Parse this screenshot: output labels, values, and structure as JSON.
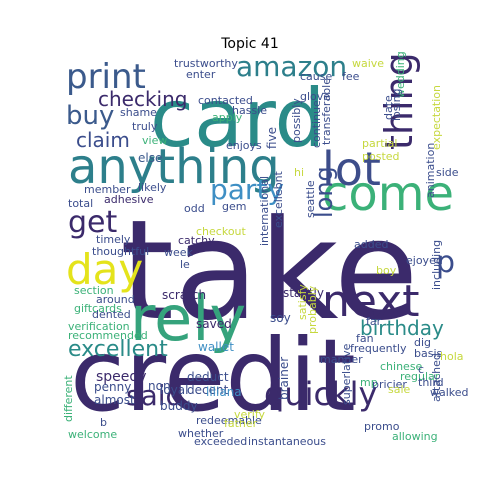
{
  "title": "Topic 41",
  "words": [
    {
      "text": "take",
      "color": "#3b2a6b"
    },
    {
      "text": "credit",
      "color": "#3b2a6b"
    },
    {
      "text": "card",
      "color": "#2a8b88"
    },
    {
      "text": "anything",
      "color": "#2d7f8b"
    },
    {
      "text": "rely",
      "color": "#35a37c"
    },
    {
      "text": "come",
      "color": "#3bb178"
    },
    {
      "text": "lot",
      "color": "#3d4d8a"
    },
    {
      "text": "next",
      "color": "#3b2a6b"
    },
    {
      "text": "day",
      "color": "#e4e31b"
    },
    {
      "text": "print",
      "color": "#3b5a8c"
    },
    {
      "text": "amazon",
      "color": "#2d7f8b"
    },
    {
      "text": "thing",
      "color": "#3b2a6b"
    },
    {
      "text": "quickly",
      "color": "#3b2a6b"
    },
    {
      "text": "said",
      "color": "#3b2a6b"
    },
    {
      "text": "get",
      "color": "#3b2a6b"
    },
    {
      "text": "party",
      "color": "#3f8fc4"
    },
    {
      "text": "buy",
      "color": "#3b5a8c"
    },
    {
      "text": "excellent",
      "color": "#2a8b88"
    },
    {
      "text": "birthday",
      "color": "#2a8b88"
    },
    {
      "text": "checking",
      "color": "#3b2a6b"
    },
    {
      "text": "claim",
      "color": "#3b4d8c"
    },
    {
      "text": "long",
      "color": "#3b4d8c"
    },
    {
      "text": "p",
      "color": "#3b4d8c"
    },
    {
      "text": "else",
      "color": "#3b5a8c"
    },
    {
      "text": "scratch",
      "color": "#3b2a6b"
    },
    {
      "text": "instantly",
      "color": "#3b2a6b"
    },
    {
      "text": "saved",
      "color": "#3b2a6b"
    },
    {
      "text": "soy",
      "color": "#3b4d8c"
    },
    {
      "text": "wallet",
      "color": "#3f8fc4"
    },
    {
      "text": "deduct",
      "color": "#3b4d8c"
    },
    {
      "text": "decent",
      "color": "#3b4d8c"
    },
    {
      "text": "loyal",
      "color": "#3b4d8c"
    },
    {
      "text": "buddy",
      "color": "#3b4d8c"
    },
    {
      "text": "speedy",
      "color": "#3b2a6b"
    },
    {
      "text": "penny",
      "color": "#3b4d8c"
    },
    {
      "text": "almost",
      "color": "#3b4d8c"
    },
    {
      "text": "non",
      "color": "#3b4d8c"
    },
    {
      "text": "liliana",
      "color": "#3f8fc4"
    },
    {
      "text": "brainer",
      "color": "#3b4d8c"
    },
    {
      "text": "five",
      "color": "#3b4d8c"
    },
    {
      "text": "possibly",
      "color": "#3b4d8c"
    },
    {
      "text": "continue",
      "color": "#3b4d8c"
    },
    {
      "text": "transferable",
      "color": "#3b4d8c"
    },
    {
      "text": "glove",
      "color": "#3b4d8c"
    },
    {
      "text": "contacted",
      "color": "#3b4d8c"
    },
    {
      "text": "hassle",
      "color": "#3b4d8c"
    },
    {
      "text": "enter",
      "color": "#3b4d8c"
    },
    {
      "text": "cause",
      "color": "#3b4d8c"
    },
    {
      "text": "trustworthy",
      "color": "#3b4d8c"
    },
    {
      "text": "waive",
      "color": "#c6d83e"
    },
    {
      "text": "fee",
      "color": "#3b4d8c"
    },
    {
      "text": "wedding",
      "color": "#3bb178"
    },
    {
      "text": "losing",
      "color": "#3b4d8c"
    },
    {
      "text": "date",
      "color": "#3b4d8c"
    },
    {
      "text": "expectation",
      "color": "#c6d83e"
    },
    {
      "text": "partial",
      "color": "#c6d83e"
    },
    {
      "text": "posted",
      "color": "#c6d83e"
    },
    {
      "text": "apply",
      "color": "#3bb178"
    },
    {
      "text": "enjoys",
      "color": "#3b4d8c"
    },
    {
      "text": "truly",
      "color": "#3b4d8c"
    },
    {
      "text": "shame",
      "color": "#3b4d8c"
    },
    {
      "text": "view",
      "color": "#3bb178"
    },
    {
      "text": "member",
      "color": "#3b4d8c"
    },
    {
      "text": "likely",
      "color": "#3b4d8c"
    },
    {
      "text": "adhesive",
      "color": "#3b2a6b"
    },
    {
      "text": "total",
      "color": "#3b4d8c"
    },
    {
      "text": "odd",
      "color": "#3b4d8c"
    },
    {
      "text": "gem",
      "color": "#3b4d8c"
    },
    {
      "text": "checkout",
      "color": "#c6d83e"
    },
    {
      "text": "catchy",
      "color": "#3b2a6b"
    },
    {
      "text": "week",
      "color": "#3b4d8c"
    },
    {
      "text": "timely",
      "color": "#3b4d8c"
    },
    {
      "text": "thoughtful",
      "color": "#3b4d8c"
    },
    {
      "text": "le",
      "color": "#3b4d8c"
    },
    {
      "text": "section",
      "color": "#3bb178"
    },
    {
      "text": "giftcards",
      "color": "#3bb178"
    },
    {
      "text": "around",
      "color": "#3b4d8c"
    },
    {
      "text": "dented",
      "color": "#3b4d8c"
    },
    {
      "text": "verification",
      "color": "#3bb178"
    },
    {
      "text": "recommended",
      "color": "#3bb178"
    },
    {
      "text": "hi",
      "color": "#c6d83e"
    },
    {
      "text": "seattle",
      "color": "#3b4d8c"
    },
    {
      "text": "excellebnt",
      "color": "#3b4d8c"
    },
    {
      "text": "international",
      "color": "#3b4d8c"
    },
    {
      "text": "added",
      "color": "#3b4d8c"
    },
    {
      "text": "ejoyed",
      "color": "#3b4d8c"
    },
    {
      "text": "boy",
      "color": "#c6d83e"
    },
    {
      "text": "including",
      "color": "#3b4d8c"
    },
    {
      "text": "animation",
      "color": "#3b4d8c"
    },
    {
      "text": "side",
      "color": "#3b4d8c"
    },
    {
      "text": "satisfy",
      "color": "#c6d83e"
    },
    {
      "text": "probably",
      "color": "#c6d83e"
    },
    {
      "text": "far",
      "color": "#3b4d8c"
    },
    {
      "text": "fan",
      "color": "#3b4d8c"
    },
    {
      "text": "frequently",
      "color": "#3b4d8c"
    },
    {
      "text": "dig",
      "color": "#3b4d8c"
    },
    {
      "text": "basis",
      "color": "#3b4d8c"
    },
    {
      "text": "hola",
      "color": "#c6d83e"
    },
    {
      "text": "manner",
      "color": "#3b4d8c"
    },
    {
      "text": "chinese",
      "color": "#3bb178"
    },
    {
      "text": "c",
      "color": "#3b4d8c"
    },
    {
      "text": "regular",
      "color": "#3bb178"
    },
    {
      "text": "third",
      "color": "#3b4d8c"
    },
    {
      "text": "mp",
      "color": "#3bb178"
    },
    {
      "text": "pricier",
      "color": "#3b4d8c"
    },
    {
      "text": "sale",
      "color": "#c6d83e"
    },
    {
      "text": "superlative",
      "color": "#3b4d8c"
    },
    {
      "text": "walked",
      "color": "#3b4d8c"
    },
    {
      "text": "attached",
      "color": "#3b4d8c"
    },
    {
      "text": "verify",
      "color": "#c6d83e"
    },
    {
      "text": "redeemable",
      "color": "#3b4d8c"
    },
    {
      "text": "father",
      "color": "#c6d83e"
    },
    {
      "text": "whether",
      "color": "#3b4d8c"
    },
    {
      "text": "exceeded",
      "color": "#3b4d8c"
    },
    {
      "text": "instantaneous",
      "color": "#3b4d8c"
    },
    {
      "text": "promo",
      "color": "#3b4d8c"
    },
    {
      "text": "allowing",
      "color": "#3bb178"
    },
    {
      "text": "different",
      "color": "#3bb178"
    },
    {
      "text": "b",
      "color": "#3b4d8c"
    },
    {
      "text": "welcome",
      "color": "#3bb178"
    }
  ]
}
